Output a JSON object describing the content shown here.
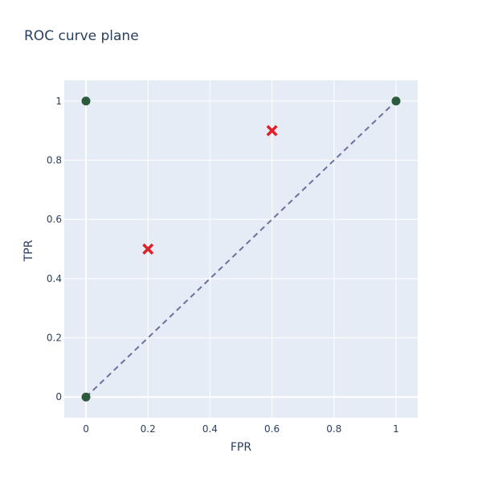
{
  "chart_data": {
    "type": "scatter",
    "title": "ROC curve plane",
    "xlabel": "FPR",
    "ylabel": "TPR",
    "xlim": [
      -0.07,
      1.07
    ],
    "ylim": [
      -0.07,
      1.07
    ],
    "x_ticks": [
      0,
      0.2,
      0.4,
      0.6,
      0.8,
      1
    ],
    "x_tick_labels": [
      "0",
      "0.2",
      "0.4",
      "0.6",
      "0.8",
      "1"
    ],
    "y_ticks": [
      0,
      0.2,
      0.4,
      0.6,
      0.8,
      1
    ],
    "y_tick_labels": [
      "0",
      "0.2",
      "0.4",
      "0.6",
      "0.8",
      "1"
    ],
    "grid": true,
    "legend": "none",
    "background_color": "#e5ecf6",
    "grid_color": "#ffffff",
    "series": [
      {
        "kind": "line",
        "style": "dashed",
        "color": "#6f6f9e",
        "x": [
          0,
          1
        ],
        "y": [
          0,
          1
        ]
      },
      {
        "kind": "markers",
        "marker": "circle",
        "color": "#2d5a3d",
        "x": [
          0,
          0,
          1
        ],
        "y": [
          0,
          1,
          1
        ]
      },
      {
        "kind": "markers",
        "marker": "x",
        "color": "#e01f26",
        "x": [
          0.2,
          0.6
        ],
        "y": [
          0.5,
          0.9
        ]
      }
    ]
  }
}
